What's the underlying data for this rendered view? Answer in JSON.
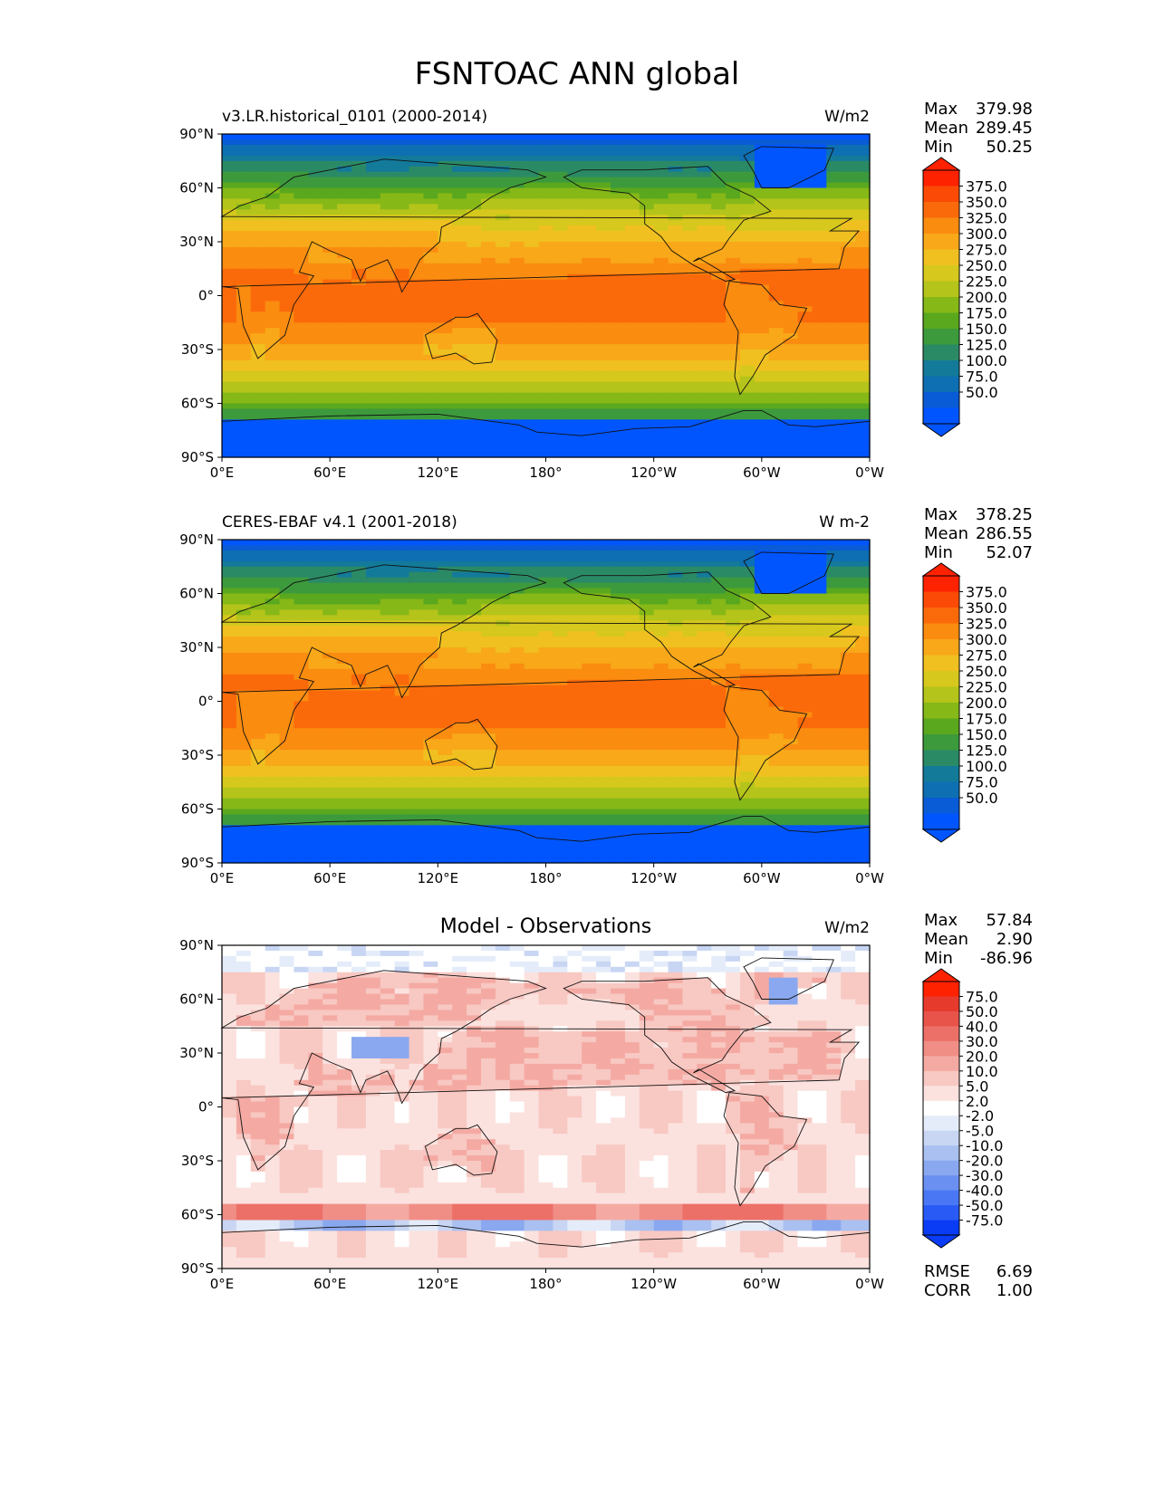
{
  "title": "FSNTOAC ANN global",
  "lat_ticks": [
    "90°N",
    "60°N",
    "30°N",
    "0°",
    "30°S",
    "60°S",
    "90°S"
  ],
  "lon_ticks": [
    "0°E",
    "60°E",
    "120°E",
    "180°",
    "120°W",
    "60°W",
    "0°W"
  ],
  "stat_labels": {
    "max": "Max",
    "mean": "Mean",
    "min": "Min",
    "rmse": "RMSE",
    "corr": "CORR"
  },
  "panels": [
    {
      "left_title": "v3.LR.historical_0101 (2000-2014)",
      "center_title": "",
      "units": "W/m2",
      "stats": {
        "max": "379.98",
        "mean": "289.45",
        "min": "50.25"
      },
      "colorbar_labels": [
        "375.0",
        "350.0",
        "325.0",
        "300.0",
        "275.0",
        "250.0",
        "225.0",
        "200.0",
        "175.0",
        "150.0",
        "125.0",
        "100.0",
        "75.0",
        "50.0"
      ]
    },
    {
      "left_title": "CERES-EBAF v4.1 (2001-2018)",
      "center_title": "",
      "units": "W m-2",
      "stats": {
        "max": "378.25",
        "mean": "286.55",
        "min": "52.07"
      },
      "colorbar_labels": [
        "375.0",
        "350.0",
        "325.0",
        "300.0",
        "275.0",
        "250.0",
        "225.0",
        "200.0",
        "175.0",
        "150.0",
        "125.0",
        "100.0",
        "75.0",
        "50.0"
      ]
    },
    {
      "left_title": "",
      "center_title": "Model - Observations",
      "units": "W/m2",
      "stats": {
        "max": "57.84",
        "mean": "2.90",
        "min": "-86.96"
      },
      "extra_stats": {
        "rmse": "6.69",
        "corr": "1.00"
      },
      "colorbar_labels": [
        "75.0",
        "50.0",
        "40.0",
        "30.0",
        "20.0",
        "10.0",
        "5.0",
        "2.0",
        "-2.0",
        "-5.0",
        "-10.0",
        "-20.0",
        "-30.0",
        "-40.0",
        "-50.0",
        "-75.0"
      ]
    }
  ],
  "colors": {
    "abs_scale": [
      "#0055ff",
      "#0a5bd6",
      "#0e6fb2",
      "#137a9a",
      "#2b8a66",
      "#3d9a3c",
      "#5aa81e",
      "#86b818",
      "#b4c41a",
      "#d6c81c",
      "#f0c020",
      "#f8a818",
      "#fa8c10",
      "#fb6a0a",
      "#fb4a06",
      "#ff2200"
    ],
    "diff_scale": [
      "#0a3cf5",
      "#2a5af5",
      "#4a78f5",
      "#6a90f2",
      "#8aa8ef",
      "#aac0f0",
      "#c8d6f4",
      "#e4ecfa",
      "#ffffff",
      "#fbe2df",
      "#f8c8c2",
      "#f4aaa3",
      "#f08e86",
      "#ec7068",
      "#e8534a",
      "#e63a2c",
      "#ff2200"
    ]
  }
}
